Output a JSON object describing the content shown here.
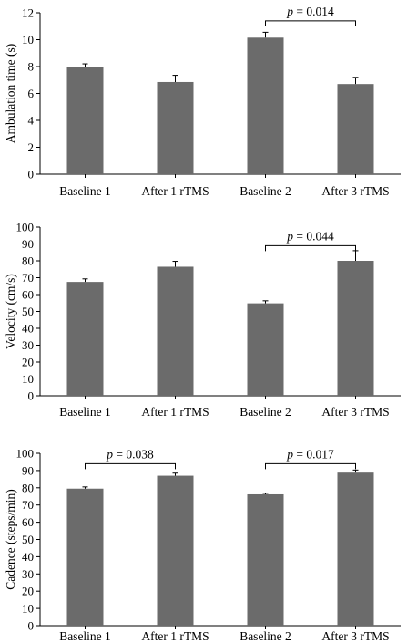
{
  "bar_color": "#6b6b6b",
  "chart_data": [
    {
      "type": "bar",
      "categories": [
        "Baseline 1",
        "After 1 rTMS",
        "Baseline 2",
        "After 3 rTMS"
      ],
      "values": [
        8.0,
        6.85,
        10.15,
        6.7
      ],
      "errors": [
        0.2,
        0.5,
        0.4,
        0.5
      ],
      "ylabel": "Ambulation time (s)",
      "ylim": [
        0,
        12
      ],
      "yticks": [
        0,
        2,
        4,
        6,
        8,
        10,
        12
      ],
      "annotations": [
        {
          "from": 2,
          "to": 3,
          "label_prefix": "p",
          "label_rest": " = 0.014",
          "bracket_value": 11.4
        }
      ]
    },
    {
      "type": "bar",
      "categories": [
        "Baseline 1",
        "After 1 rTMS",
        "Baseline 2",
        "After 3 rTMS"
      ],
      "values": [
        67.5,
        76.5,
        54.8,
        80.0
      ],
      "errors": [
        1.8,
        3.2,
        1.5,
        6.0
      ],
      "ylabel": "Velocity (cm/s)",
      "ylim": [
        0,
        100
      ],
      "yticks": [
        0,
        10,
        20,
        30,
        40,
        50,
        60,
        70,
        80,
        90,
        100
      ],
      "annotations": [
        {
          "from": 2,
          "to": 3,
          "label_prefix": "p",
          "label_rest": " = 0.044",
          "bracket_value": 89
        }
      ]
    },
    {
      "type": "bar",
      "categories": [
        "Baseline 1",
        "After 1 rTMS",
        "Baseline 2",
        "After 3 rTMS"
      ],
      "values": [
        79.5,
        87.0,
        76.2,
        88.8
      ],
      "errors": [
        1.0,
        1.5,
        0.6,
        1.5
      ],
      "ylabel": "Cadence (steps/min)",
      "ylim": [
        0,
        100
      ],
      "yticks": [
        0,
        10,
        20,
        30,
        40,
        50,
        60,
        70,
        80,
        90,
        100
      ],
      "annotations": [
        {
          "from": 0,
          "to": 1,
          "label_prefix": "p",
          "label_rest": " = 0.038",
          "bracket_value": 94
        },
        {
          "from": 2,
          "to": 3,
          "label_prefix": "p",
          "label_rest": " = 0.017",
          "bracket_value": 94
        }
      ]
    }
  ]
}
